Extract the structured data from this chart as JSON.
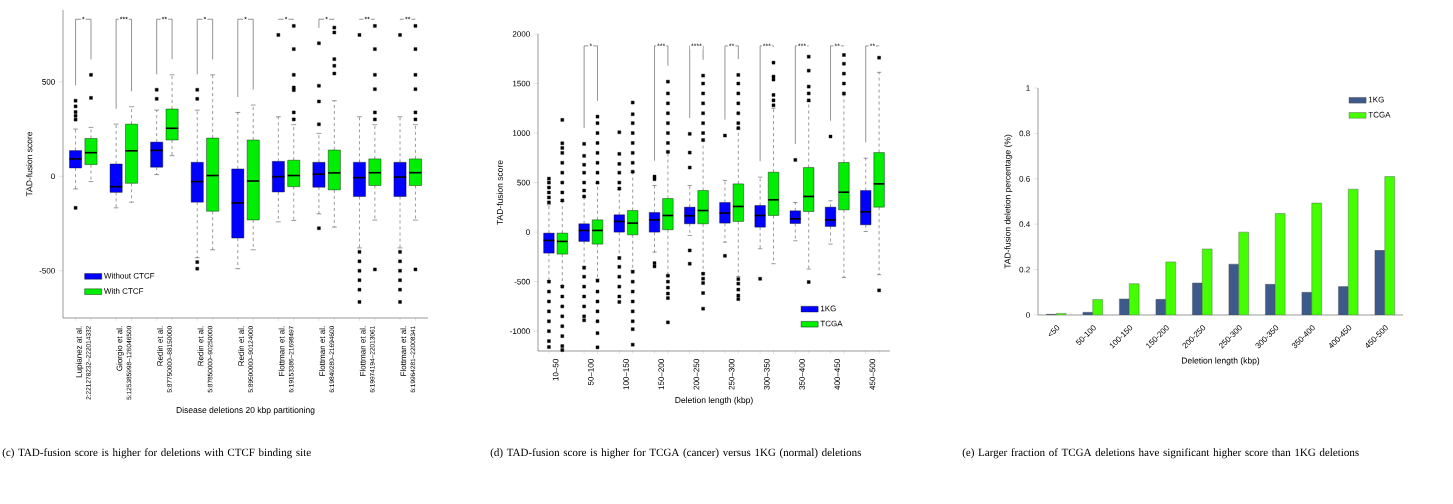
{
  "chart_data": [
    {
      "type": "box",
      "title": "(c) TAD-fusion score is higher for deletions with CTCF binding site",
      "xlabel": "Disease deletions 20 kbp partitioning",
      "ylabel": "TAD-fusion score",
      "categories": [
        "Lupianez at al.",
        "Giorgio et al.",
        "Redin et al.",
        "Redin et al.",
        "Redin et al.",
        "Flottman et al.",
        "Flottman et al.",
        "Flottman et al.",
        "Flottman et al."
      ],
      "ylim": [
        -750,
        880
      ],
      "yticks": [
        -500,
        0,
        500
      ],
      "legend": "bottom left",
      "annotations": [
        "2:221278232–222014332",
        "5:125385998–126046500",
        "5:87750000–88150000",
        "5:87850000–90250000",
        "5:89500000–90124000",
        "6:19153386–21698497",
        "6:19849280–21694600",
        "6:19974194–22013061",
        "6:19964281–22008341",
        "*",
        "***",
        "**",
        "*",
        "*",
        "*",
        "*",
        "**",
        "**"
      ],
      "series": [
        {
          "name": "Without CTCF",
          "color": "#0000ff",
          "boxes": [
            {
              "low": -67,
              "q1": 44,
              "median": 92,
              "q3": 136,
              "high": 250,
              "outliers": [
                400,
                370,
                340,
                320,
                300,
                -167
              ]
            },
            {
              "low": -167,
              "q1": -85,
              "median": -55,
              "q3": 65,
              "high": 276
            },
            {
              "low": 9,
              "q1": 48,
              "median": 137,
              "q3": 181,
              "high": 350,
              "outliers": [
                458,
                410
              ]
            },
            {
              "low": -431,
              "q1": -137,
              "median": -28,
              "q3": 74,
              "high": 350,
              "outliers": [
                458,
                410,
                -454,
                -489
              ]
            },
            {
              "low": -489,
              "q1": -327,
              "median": -141,
              "q3": 39,
              "high": 338
            },
            {
              "low": -241,
              "q1": -83,
              "median": -2,
              "q3": 79,
              "high": 315,
              "outliers": [
                748
              ]
            },
            {
              "low": -199,
              "q1": -58,
              "median": 11,
              "q3": 74,
              "high": 227,
              "outliers": [
                704,
                479,
                396,
                275,
                -275
              ]
            },
            {
              "low": -379,
              "q1": -107,
              "median": -7,
              "q3": 74,
              "high": 315,
              "outliers": [
                748,
                -400,
                -450,
                -500,
                -550,
                -600,
                -665
              ]
            },
            {
              "low": -379,
              "q1": -107,
              "median": -4,
              "q3": 74,
              "high": 315,
              "outliers": [
                748,
                -400,
                -450,
                -500,
                -550,
                -600,
                -665
              ]
            }
          ]
        },
        {
          "name": "With CTCF",
          "color": "#00ee00",
          "boxes": [
            {
              "low": -28,
              "q1": 62,
              "median": 125,
              "q3": 200,
              "high": 259,
              "outliers": [
                537,
                415
              ]
            },
            {
              "low": -137,
              "q1": -37,
              "median": 135,
              "q3": 276,
              "high": 368
            },
            {
              "low": 109,
              "q1": 192,
              "median": 254,
              "q3": 356,
              "high": 537
            },
            {
              "low": -389,
              "q1": -185,
              "median": 4,
              "q3": 202,
              "high": 537
            },
            {
              "low": -389,
              "q1": -231,
              "median": -25,
              "q3": 192,
              "high": 377
            },
            {
              "low": -234,
              "q1": -55,
              "median": 4,
              "q3": 85,
              "high": 273,
              "outliers": [
                796,
                673,
                537,
                470,
                456,
                338,
                301
              ]
            },
            {
              "low": -269,
              "q1": -72,
              "median": 18,
              "q3": 139,
              "high": 400,
              "outliers": [
                787,
                761,
                620,
                585,
                544
              ]
            },
            {
              "low": -232,
              "q1": -49,
              "median": 19,
              "q3": 92,
              "high": 273,
              "outliers": [
                796,
                673,
                537,
                461,
                338,
                301,
                -493
              ]
            },
            {
              "low": -232,
              "q1": -49,
              "median": 19,
              "q3": 92,
              "high": 273,
              "outliers": [
                796,
                673,
                537,
                461,
                338,
                301,
                -493
              ]
            }
          ]
        }
      ]
    },
    {
      "type": "box",
      "title": "(d) TAD-fusion score is higher for TCGA (cancer) versus 1KG (normal) deletions",
      "xlabel": "Deletion length (kbp)",
      "ylabel": "TAD-fusion score",
      "categories": [
        "10–50",
        "50–100",
        "100–150",
        "150–200",
        "200–250",
        "250–300",
        "300–350",
        "350–400",
        "400–450",
        "450–500"
      ],
      "ylim": [
        -1200,
        2000
      ],
      "yticks": [
        -1000,
        -500,
        0,
        500,
        1000,
        1500,
        2000
      ],
      "legend": "bottom right",
      "annotations": [
        {
          "text": "*",
          "x": "50–100",
          "y": 1880
        },
        {
          "text": "***",
          "x": "150–200",
          "y": 1880
        },
        {
          "text": "****",
          "x": "200–250",
          "y": 1880
        },
        {
          "text": "**",
          "x": "250–300",
          "y": 1880
        },
        {
          "text": "***",
          "x": "300–350",
          "y": 1880
        },
        {
          "text": "***",
          "x": "350–400",
          "y": 1880
        },
        {
          "text": "**",
          "x": "400–450",
          "y": 1880
        },
        {
          "text": "**",
          "x": "450–500",
          "y": 1880
        }
      ],
      "series": [
        {
          "name": "1KG",
          "color": "#0000ff",
          "boxes": [
            {
              "low": -491,
              "q1": -212,
              "median": -84,
              "q3": -10,
              "high": 276,
              "outliers": [
                540,
                500,
                450,
                400,
                350,
                300,
                -500,
                -600,
                -700,
                -800,
                -900,
                -1000,
                -1100,
                -1160
              ]
            },
            {
              "low": -346,
              "q1": -94,
              "median": 17,
              "q3": 84,
              "high": 350,
              "outliers": [
                891,
                770,
                680,
                600,
                500,
                420,
                360,
                -360,
                -450,
                -550,
                -650,
                -750,
                -850,
                -890
              ]
            },
            {
              "low": -252,
              "q1": 0,
              "median": 108,
              "q3": 175,
              "high": 427,
              "outliers": [
                1008,
                790,
                689,
                600,
                500,
                440,
                -262,
                -350,
                -450,
                -550,
                -650,
                -705
              ]
            },
            {
              "low": -202,
              "q1": 0,
              "median": 124,
              "q3": 198,
              "high": 471,
              "outliers": [
                561,
                534,
                -313,
                -346
              ]
            },
            {
              "low": -34,
              "q1": 84,
              "median": 165,
              "q3": 252,
              "high": 471,
              "outliers": [
                992,
                803,
                652,
                -185,
                -319
              ]
            },
            {
              "low": -101,
              "q1": 91,
              "median": 192,
              "q3": 299,
              "high": 521,
              "outliers": [
                975,
                -239
              ]
            },
            {
              "low": -168,
              "q1": 50,
              "median": 168,
              "q3": 269,
              "high": 555,
              "outliers": [
                -471
              ]
            },
            {
              "low": -87,
              "q1": 87,
              "median": 134,
              "q3": 215,
              "high": 299,
              "outliers": [
                729
              ]
            },
            {
              "low": -121,
              "q1": 57,
              "median": 124,
              "q3": 252,
              "high": 316,
              "outliers": [
                965
              ]
            },
            {
              "low": 7,
              "q1": 74,
              "median": 205,
              "q3": 420,
              "high": 746
            }
          ]
        },
        {
          "name": "TCGA",
          "color": "#00ee00",
          "boxes": [
            {
              "low": -538,
              "q1": -222,
              "median": -94,
              "q3": -10,
              "high": 309,
              "outliers": [
                1133,
                897,
                850,
                800,
                700,
                600,
                500,
                400,
                320,
                -550,
                -650,
                -750,
                -850,
                -950,
                -1050,
                -1150,
                -1190
              ]
            },
            {
              "low": -474,
              "q1": -121,
              "median": 17,
              "q3": 124,
              "high": 494,
              "outliers": [
                1166,
                1100,
                1000,
                900,
                800,
                700,
                600,
                500,
                -490,
                -600,
                -700,
                -800,
                -900,
                -1020,
                -1163
              ]
            },
            {
              "low": -387,
              "q1": -27,
              "median": 91,
              "q3": 218,
              "high": 602,
              "outliers": [
                1308,
                1190,
                1100,
                1000,
                900,
                800,
                700,
                610,
                -400,
                -500,
                -600,
                -700,
                -800,
                -900,
                -980,
                -1136
              ]
            },
            {
              "low": -437,
              "q1": 24,
              "median": 168,
              "q3": 339,
              "high": 807,
              "outliers": [
                1519,
                1400,
                1300,
                1200,
                1100,
                1000,
                900,
                810,
                -440,
                -500,
                -560,
                -620,
                -666,
                -911
              ]
            },
            {
              "low": -413,
              "q1": 84,
              "median": 218,
              "q3": 420,
              "high": 924,
              "outliers": [
                1580,
                1500,
                1400,
                1300,
                1200,
                1100,
                1000,
                930,
                -420,
                -470,
                -514,
                -615,
                -773
              ]
            },
            {
              "low": -447,
              "q1": 108,
              "median": 259,
              "q3": 487,
              "high": 1042,
              "outliers": [
                1587,
                1500,
                1400,
                1300,
                1200,
                1100,
                1050,
                -474,
                -520,
                -580,
                -640,
                -676
              ]
            },
            {
              "low": -319,
              "q1": 168,
              "median": 326,
              "q3": 605,
              "high": 1250,
              "outliers": [
                1711,
                1570,
                1540,
                1385,
                1330,
                1280
              ]
            },
            {
              "low": -373,
              "q1": 208,
              "median": 360,
              "q3": 652,
              "high": 1318,
              "outliers": [
                1771,
                1630,
                1469,
                1400,
                1330,
                -504
              ]
            },
            {
              "low": -457,
              "q1": 225,
              "median": 403,
              "q3": 703,
              "high": 1385,
              "outliers": [
                1788,
                1700,
                1600,
                1500,
                1400
              ]
            },
            {
              "low": -430,
              "q1": 252,
              "median": 487,
              "q3": 803,
              "high": 1613,
              "outliers": [
                1761,
                -588
              ]
            }
          ]
        }
      ]
    },
    {
      "type": "bar",
      "title": "(e) Larger fraction of TCGA deletions have significant higher score than 1KG deletions",
      "xlabel": "Deletion length (kbp)",
      "ylabel": "TAD-fusion deletion percentage (%)",
      "categories": [
        "<50",
        "50-100",
        "100-150",
        "150-200",
        "200-250",
        "250-300",
        "300-350",
        "350-400",
        "400-450",
        "450-500"
      ],
      "ylim": [
        0,
        1
      ],
      "yticks": [
        0,
        0.2,
        0.4,
        0.6,
        0.8,
        1
      ],
      "legend": "top right",
      "series": [
        {
          "name": "1KG",
          "color": "#3d5a8a",
          "values": [
            0.003,
            0.012,
            0.071,
            0.069,
            0.141,
            0.224,
            0.135,
            0.1,
            0.125,
            0.285
          ]
        },
        {
          "name": "TCGA",
          "color": "#44ff00",
          "values": [
            0.007,
            0.068,
            0.138,
            0.234,
            0.291,
            0.365,
            0.447,
            0.493,
            0.554,
            0.61
          ]
        }
      ]
    }
  ]
}
